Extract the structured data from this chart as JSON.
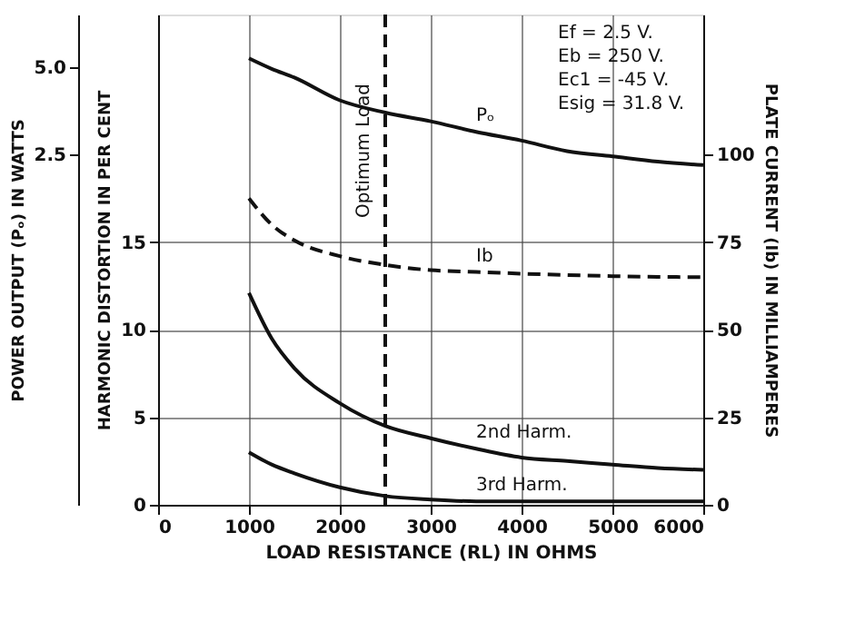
{
  "chart_data": {
    "type": "line",
    "xlabel": "LOAD RESISTANCE (RL) IN OHMS",
    "ylabel": "HARMONIC DISTORTION IN PER CENT",
    "y2label": "PLATE CURRENT (Ib) IN MILLIAMPERES",
    "y3label": "POWER OUTPUT (Pₒ) IN WATTS",
    "x": [
      1000,
      1250,
      1500,
      2000,
      2500,
      3000,
      3500,
      4000,
      4500,
      5000,
      5500,
      6000
    ],
    "xlim": [
      0,
      6000
    ],
    "xticks": [
      0,
      1000,
      2000,
      3000,
      4000,
      5000,
      6000
    ],
    "ylim": [
      0,
      28
    ],
    "yticks": [
      0,
      5,
      10,
      15
    ],
    "y2lim": [
      0,
      140
    ],
    "y2ticks": [
      0,
      25,
      50,
      75,
      100
    ],
    "y3lim": [
      -7.5,
      6.5
    ],
    "y3ticks": [
      2.5,
      {
        "value": 5,
        "label": "5.0"
      }
    ],
    "series": [
      {
        "name": "Pₒ",
        "color": "#111111",
        "axis": "y3",
        "line_style": "solid",
        "values": [
          5.25,
          4.95,
          4.7,
          4.05,
          3.7,
          3.45,
          3.15,
          2.9,
          2.6,
          2.45,
          2.3,
          2.2
        ]
      },
      {
        "name": "Ib",
        "color": "#111111",
        "axis": "y2",
        "line_style": "dashed",
        "values": [
          87.5,
          80,
          75.5,
          71,
          68.5,
          67,
          66.5,
          66,
          65.6,
          65.3,
          65.1,
          65
        ]
      },
      {
        "name": "2nd Harm.",
        "color": "#111111",
        "axis": "y",
        "line_style": "solid",
        "values": [
          12.1,
          9.5,
          7.8,
          5.8,
          4.5,
          3.8,
          3.2,
          2.7,
          2.5,
          2.3,
          2.1,
          2.0
        ]
      },
      {
        "name": "3rd Harm.",
        "color": "#111111",
        "axis": "y",
        "line_style": "solid",
        "values": [
          3.0,
          2.3,
          1.8,
          1.0,
          0.5,
          0.3,
          0.2,
          0.2,
          0.2,
          0.2,
          0.2,
          0.2
        ]
      }
    ],
    "ref_lines": [
      {
        "axis": "x",
        "value": 2500,
        "label": "Optimum Load",
        "line_style": "dashed",
        "color": "#111111"
      }
    ],
    "annotations": [
      "Ef = 2.5 V.",
      "Eb = 250 V.",
      "Ec1 = -45 V.",
      "Esig = 31.8 V."
    ],
    "grid": true,
    "legend": false
  }
}
